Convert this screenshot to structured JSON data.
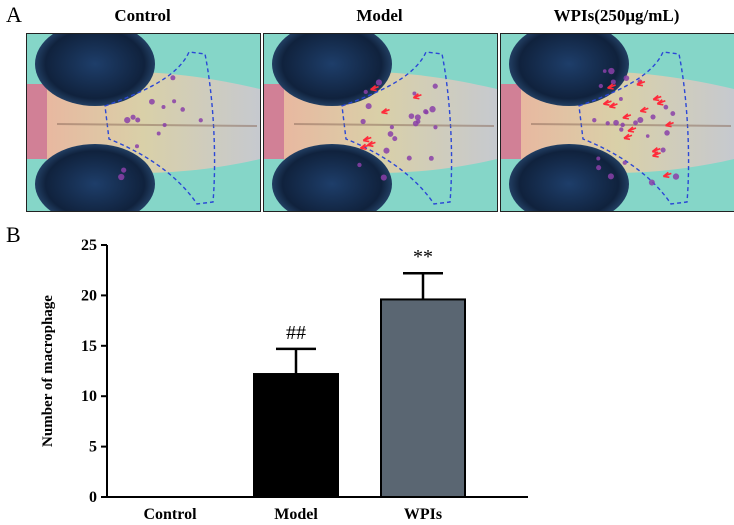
{
  "panel_a": {
    "letter": "A",
    "images": [
      {
        "title": "Control",
        "arrows": 0,
        "dots": 14
      },
      {
        "title": "Model",
        "arrows": 6,
        "dots": 22
      },
      {
        "title": "WPIs(250μg/mL)",
        "arrows": 14,
        "dots": 26
      }
    ]
  },
  "panel_b": {
    "letter": "B"
  },
  "chart_data": {
    "type": "bar",
    "categories": [
      "Control",
      "Model",
      "WPIs"
    ],
    "values": [
      0,
      12.2,
      19.6
    ],
    "errors": [
      0,
      2.5,
      2.6
    ],
    "annotations": [
      "",
      "##",
      "**"
    ],
    "bar_colors": [
      "#000000",
      "#000000",
      "#5a6672"
    ],
    "ylabel": "Number of macrophage",
    "xlabel": "",
    "ylim": [
      0,
      25
    ],
    "yticks": [
      0,
      5,
      10,
      15,
      20,
      25
    ],
    "grid": false
  }
}
